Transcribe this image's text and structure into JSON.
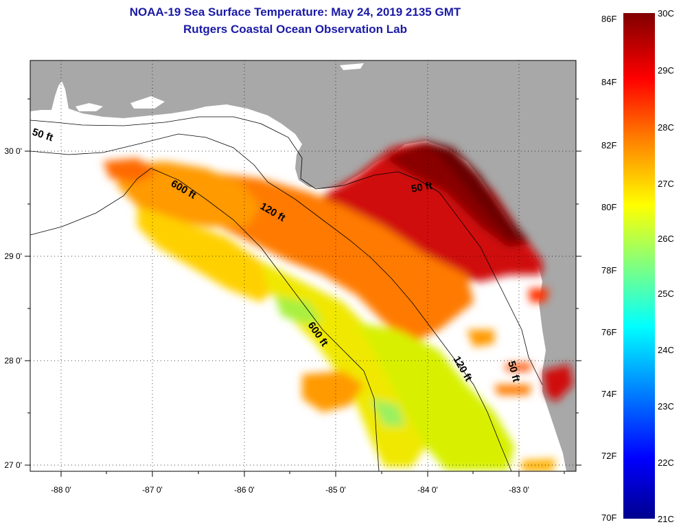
{
  "title": {
    "line1": "NOAA-19 Sea Surface Temperature:  May 24, 2019 2135 GMT",
    "line2": "Rutgers Coastal Ocean Observation Lab"
  },
  "axes": {
    "longitude_labels": [
      "-88 0'",
      "-87 0'",
      "-86 0'",
      "-85 0'",
      "-84 0'",
      "-83 0'"
    ],
    "latitude_labels": [
      "30 0'",
      "29 0'",
      "28 0'",
      "27 0'"
    ],
    "lon_range": [
      -88.35,
      -82.35
    ],
    "lat_range": [
      26.97,
      30.87
    ]
  },
  "contours": {
    "labels": [
      "50 ft",
      "600 ft",
      "120 ft",
      "50 ft",
      "600 ft",
      "120 ft",
      "50 ft"
    ]
  },
  "colorbar": {
    "fahrenheit": [
      "86F",
      "84F",
      "82F",
      "80F",
      "78F",
      "76F",
      "74F",
      "72F",
      "70F"
    ],
    "celsius": [
      "30C",
      "29C",
      "28C",
      "27C",
      "26C",
      "25C",
      "24C",
      "23C",
      "22C",
      "21C"
    ],
    "range_c": [
      21,
      30
    ],
    "colormap": "jet"
  },
  "colors": {
    "land": "#a8a8a8",
    "no_data": "#ffffff",
    "title": "#1a1aa6"
  }
}
